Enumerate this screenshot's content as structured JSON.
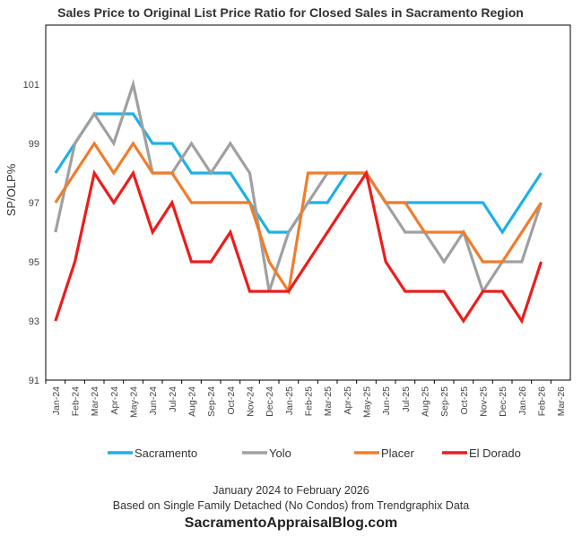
{
  "chart_data": {
    "type": "line",
    "title": "Sales Price to Original List Price Ratio for Closed Sales in Sacramento Region",
    "ylabel": "SP/OLP%",
    "xlabel": "",
    "ylim": [
      91,
      103
    ],
    "yticks": [
      91,
      93,
      95,
      97,
      99,
      101
    ],
    "categories": [
      "Jan-24",
      "Feb-24",
      "Mar-24",
      "Apr-24",
      "May-24",
      "Jun-24",
      "Jul-24",
      "Aug-24",
      "Sep-24",
      "Oct-24",
      "Nov-24",
      "Dec-24",
      "Jan-25",
      "Feb-25",
      "Mar-25",
      "Apr-25",
      "May-25",
      "Jun-25",
      "Jul-25",
      "Aug-25",
      "Sep-25",
      "Oct-25",
      "Nov-25",
      "Dec-25",
      "Jan-26",
      "Feb-26",
      "Mar-26"
    ],
    "series": [
      {
        "name": "Sacramento",
        "color": "#1FB0E8",
        "values": [
          98,
          99,
          100,
          100,
          100,
          99,
          99,
          98,
          98,
          98,
          97,
          96,
          96,
          97,
          97,
          98,
          98,
          97,
          97,
          97,
          97,
          97,
          97,
          96,
          97,
          98,
          null
        ]
      },
      {
        "name": "Yolo",
        "color": "#A0A0A0",
        "values": [
          96,
          99,
          100,
          99,
          101,
          98,
          98,
          99,
          98,
          99,
          98,
          94,
          96,
          97,
          98,
          98,
          98,
          97,
          96,
          96,
          95,
          96,
          94,
          95,
          95,
          97,
          null
        ]
      },
      {
        "name": "Placer",
        "color": "#F07D2C",
        "values": [
          97,
          98,
          99,
          98,
          99,
          98,
          98,
          97,
          97,
          97,
          97,
          95,
          94,
          98,
          98,
          98,
          98,
          97,
          97,
          96,
          96,
          96,
          95,
          95,
          96,
          97,
          null
        ]
      },
      {
        "name": "El Dorado",
        "color": "#EE1C1C",
        "values": [
          93,
          95,
          98,
          97,
          98,
          96,
          97,
          95,
          95,
          96,
          94,
          94,
          94,
          95,
          96,
          97,
          98,
          95,
          94,
          94,
          94,
          93,
          94,
          94,
          93,
          95,
          null
        ]
      }
    ],
    "legend_position": "bottom",
    "grid": false
  },
  "footer": {
    "line1": "January 2024 to February 2026",
    "line2": "Based on Single Family Detached (No Condos) from Trendgraphix Data",
    "site": "SacramentoAppraisalBlog.com"
  }
}
